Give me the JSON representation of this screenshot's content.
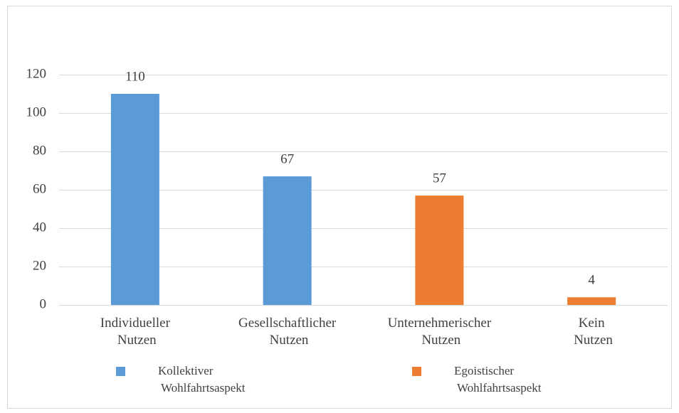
{
  "chart_data": {
    "type": "bar",
    "categories": [
      "Individueller Nutzen",
      "Gesellschaftlicher Nutzen",
      "Unternehmerischer Nutzen",
      "Kein Nutzen"
    ],
    "series": [
      {
        "name": "Kollektiver Wohlfahrtsaspekt",
        "color": "#5b9bd5",
        "values": [
          110,
          67,
          null,
          null
        ]
      },
      {
        "name": "Egoistischer Wohlfahrtsaspekt",
        "color": "#ed7d31",
        "values": [
          null,
          null,
          57,
          4
        ]
      }
    ],
    "ylim": [
      0,
      120
    ],
    "yticks": [
      0,
      20,
      40,
      60,
      80,
      100,
      120
    ],
    "grid": true,
    "legend": "bottom"
  }
}
